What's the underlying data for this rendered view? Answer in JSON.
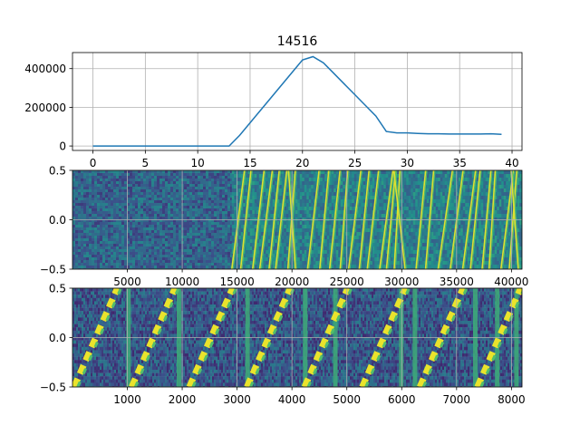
{
  "figure": {
    "title": "14516"
  },
  "chart_data": [
    {
      "type": "line",
      "title": "14516",
      "xlabel": "",
      "ylabel": "",
      "xlim": [
        -1.95,
        40.95
      ],
      "ylim": [
        -23000,
        483000
      ],
      "xticks": [
        0,
        5,
        10,
        15,
        20,
        25,
        30,
        35,
        40
      ],
      "yticks": [
        0,
        200000,
        400000
      ],
      "ytick_labels": [
        "0",
        "200000",
        "400000"
      ],
      "grid": true,
      "colors": {
        "line": "#1f77b4"
      },
      "series": [
        {
          "x": [
            0,
            1,
            2,
            3,
            4,
            5,
            6,
            7,
            8,
            9,
            10,
            11,
            12,
            13,
            14,
            15,
            16,
            17,
            18,
            19,
            20,
            21,
            22,
            23,
            24,
            25,
            26,
            27,
            28,
            29,
            30,
            31,
            32,
            33,
            34,
            35,
            36,
            37,
            38,
            39
          ],
          "values": [
            0,
            0,
            0,
            0,
            0,
            0,
            0,
            0,
            0,
            0,
            0,
            0,
            0,
            0,
            55000,
            120000,
            185000,
            250000,
            315000,
            380000,
            445000,
            462000,
            430000,
            375000,
            320000,
            265000,
            210000,
            155000,
            75000,
            68000,
            68000,
            65000,
            63000,
            63000,
            62000,
            62000,
            62000,
            62000,
            63000,
            60000
          ]
        }
      ]
    },
    {
      "type": "heatmap",
      "xlabel": "",
      "ylabel": "",
      "xlim": [
        1,
        40960
      ],
      "ylim": [
        -0.5,
        0.5
      ],
      "xticks": [
        5000,
        10000,
        15000,
        20000,
        25000,
        30000,
        35000,
        40000
      ],
      "yticks": [
        -0.5,
        0.0,
        0.5
      ],
      "ytick_labels": [
        "−0.5",
        "0.0",
        "0.5"
      ],
      "grid": true,
      "colormap": "viridis",
      "noise_until": 14516
    },
    {
      "type": "heatmap",
      "xlabel": "",
      "ylabel": "",
      "xlim": [
        1,
        8192
      ],
      "ylim": [
        -0.5,
        0.5
      ],
      "xticks": [
        1000,
        2000,
        3000,
        4000,
        5000,
        6000,
        7000,
        8000
      ],
      "yticks": [
        -0.5,
        0.0,
        0.5
      ],
      "ytick_labels": [
        "−0.5",
        "0.0",
        "0.5"
      ],
      "grid": true,
      "colormap": "viridis"
    }
  ]
}
